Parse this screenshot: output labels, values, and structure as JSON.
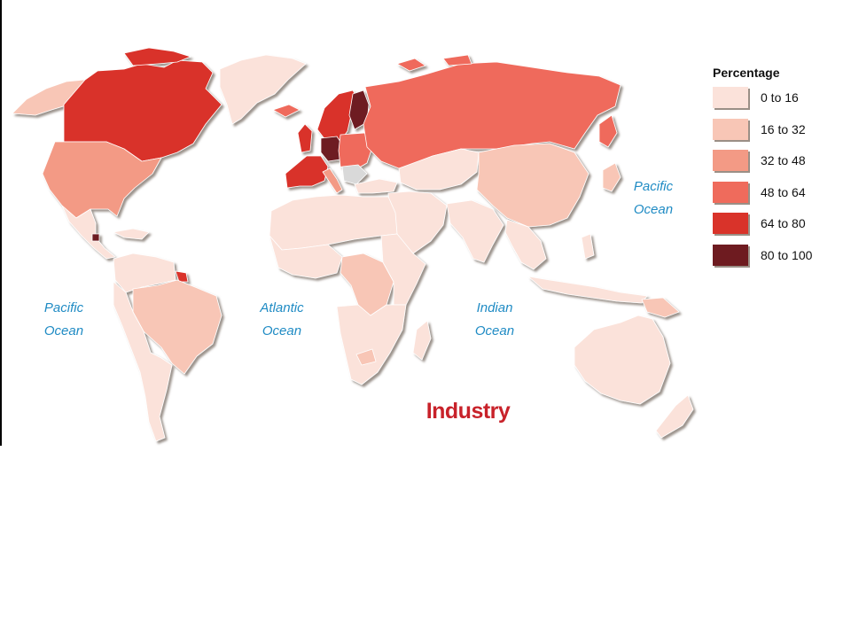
{
  "map": {
    "title": "Industry",
    "colors": {
      "land_lowest": "#fbe2da",
      "land_low": "#f8c6b6",
      "land_mid": "#f39a85",
      "land_high": "#ef6b5c",
      "land_higher": "#d9332a",
      "land_highest": "#6e1b20",
      "no_data": "#d9d9d9",
      "ocean_label": "#1f8bc4",
      "title": "#c8222a"
    },
    "oceans": [
      {
        "name": "Pacific",
        "suffix": "Ocean"
      },
      {
        "name": "Atlantic",
        "suffix": "Ocean"
      },
      {
        "name": "Indian",
        "suffix": "Ocean"
      },
      {
        "name": "Pacific",
        "suffix": "Ocean"
      }
    ]
  },
  "legend": {
    "title": "Percentage",
    "items": [
      {
        "label": "0 to 16",
        "color": "#fbe2da"
      },
      {
        "label": "16 to 32",
        "color": "#f8c6b6"
      },
      {
        "label": "32 to 48",
        "color": "#f39a85"
      },
      {
        "label": "48 to 64",
        "color": "#ef6b5c"
      },
      {
        "label": "64 to 80",
        "color": "#d9332a"
      },
      {
        "label": "80 to 100",
        "color": "#6e1b20"
      }
    ]
  }
}
